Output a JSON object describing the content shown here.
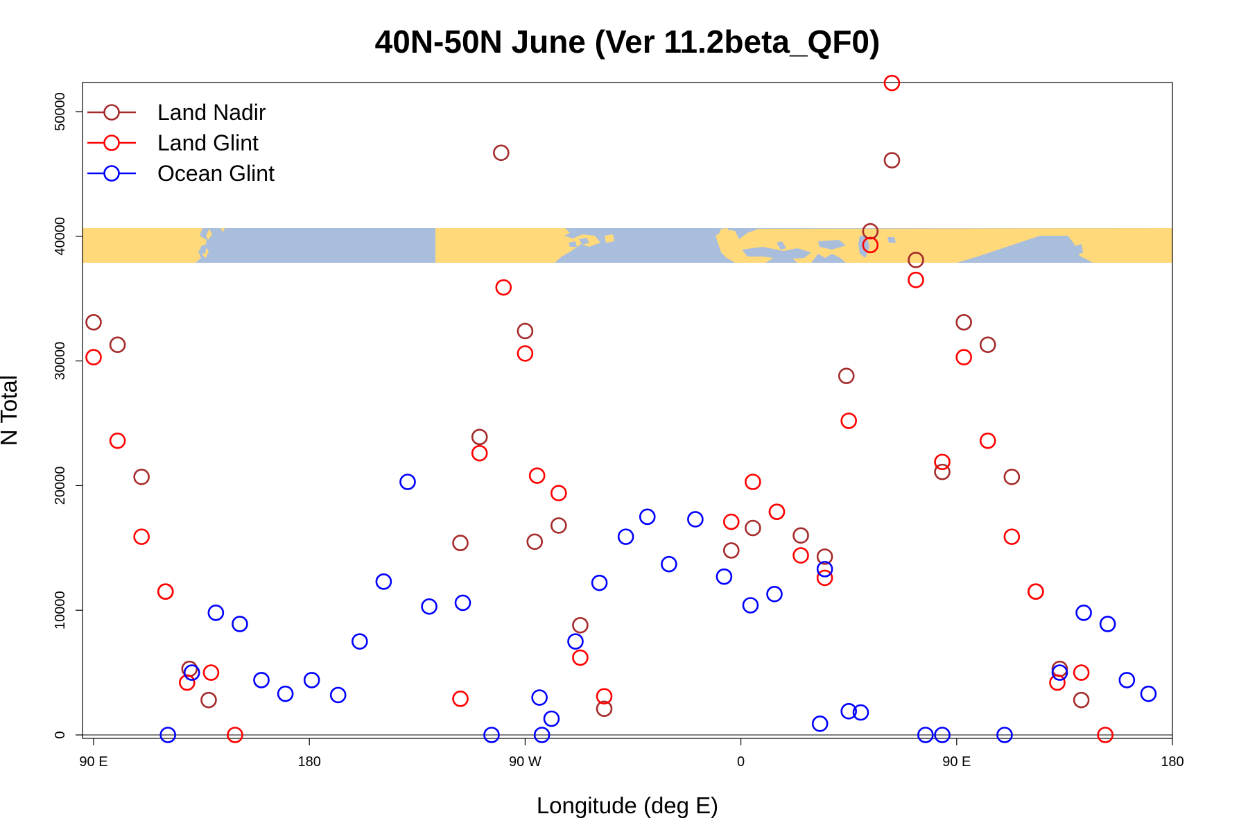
{
  "chart_data": {
    "type": "scatter",
    "title": "40N-50N June (Ver 11.2beta_QF0)",
    "xlabel": "Longitude (deg E)",
    "ylabel": "N Total",
    "xlim": [
      85,
      535
    ],
    "ylim": [
      0,
      52500
    ],
    "x_ticks": [
      {
        "value": 90,
        "label": "90 E"
      },
      {
        "value": 180,
        "label": "180"
      },
      {
        "value": 270,
        "label": "90 W"
      },
      {
        "value": 360,
        "label": "0"
      },
      {
        "value": 450,
        "label": "90 E"
      },
      {
        "value": 540,
        "label": "180"
      }
    ],
    "y_ticks": [
      0,
      10000,
      20000,
      30000,
      40000,
      50000
    ],
    "y_tick_labels": [
      "0",
      "10000",
      "20000",
      "30000",
      "40000",
      "50000"
    ],
    "legend_position": "top-left",
    "inset_map": {
      "description": "world map strip",
      "land_color": "#FFD97A",
      "ocean_color": "#A9BEDD",
      "y_range": [
        38000,
        40800
      ]
    },
    "series": [
      {
        "name": "Land Nadir",
        "color": "#A52A2A",
        "points": [
          [
            90,
            33100
          ],
          [
            100,
            31300
          ],
          [
            110,
            20700
          ],
          [
            120,
            11500
          ],
          [
            130,
            5300
          ],
          [
            138,
            2800
          ],
          [
            243,
            15400
          ],
          [
            251,
            23900
          ],
          [
            260,
            46700
          ],
          [
            270,
            32400
          ],
          [
            274,
            15500
          ],
          [
            284,
            16800
          ],
          [
            293,
            8800
          ],
          [
            303,
            2100
          ],
          [
            356,
            14800
          ],
          [
            365,
            16600
          ],
          [
            375,
            17900
          ],
          [
            385,
            16000
          ],
          [
            395,
            14300
          ],
          [
            404,
            28800
          ],
          [
            414,
            40400
          ],
          [
            423,
            46100
          ],
          [
            433,
            38100
          ],
          [
            444,
            21100
          ],
          [
            453,
            33100
          ],
          [
            463,
            31300
          ],
          [
            473,
            20700
          ],
          [
            483,
            11500
          ],
          [
            493,
            5300
          ],
          [
            502,
            2800
          ]
        ]
      },
      {
        "name": "Land Glint",
        "color": "#FF0000",
        "points": [
          [
            90,
            30300
          ],
          [
            100,
            23600
          ],
          [
            110,
            15900
          ],
          [
            120,
            11500
          ],
          [
            129,
            4200
          ],
          [
            139,
            5000
          ],
          [
            149,
            0
          ],
          [
            243,
            2900
          ],
          [
            251,
            22600
          ],
          [
            261,
            35900
          ],
          [
            270,
            30600
          ],
          [
            275,
            20800
          ],
          [
            284,
            19400
          ],
          [
            293,
            6200
          ],
          [
            303,
            3100
          ],
          [
            356,
            17100
          ],
          [
            365,
            20300
          ],
          [
            375,
            17900
          ],
          [
            385,
            14400
          ],
          [
            395,
            12600
          ],
          [
            405,
            25200
          ],
          [
            414,
            39300
          ],
          [
            423,
            52300
          ],
          [
            433,
            36500
          ],
          [
            444,
            21900
          ],
          [
            453,
            30300
          ],
          [
            463,
            23600
          ],
          [
            473,
            15900
          ],
          [
            483,
            11500
          ],
          [
            492,
            4200
          ],
          [
            502,
            5000
          ],
          [
            512,
            0
          ]
        ]
      },
      {
        "name": "Ocean Glint",
        "color": "#0000FF",
        "points": [
          [
            121,
            0
          ],
          [
            131,
            5000
          ],
          [
            141,
            9800
          ],
          [
            151,
            8900
          ],
          [
            160,
            4400
          ],
          [
            170,
            3300
          ],
          [
            181,
            4400
          ],
          [
            192,
            3200
          ],
          [
            201,
            7500
          ],
          [
            211,
            12300
          ],
          [
            221,
            20300
          ],
          [
            230,
            10300
          ],
          [
            244,
            10600
          ],
          [
            256,
            0
          ],
          [
            277,
            0
          ],
          [
            291,
            7500
          ],
          [
            281,
            1300
          ],
          [
            276,
            3000
          ],
          [
            301,
            12200
          ],
          [
            312,
            15900
          ],
          [
            321,
            17500
          ],
          [
            330,
            13700
          ],
          [
            341,
            17300
          ],
          [
            353,
            12700
          ],
          [
            364,
            10400
          ],
          [
            374,
            11300
          ],
          [
            393,
            900
          ],
          [
            405,
            1900
          ],
          [
            410,
            1800
          ],
          [
            395,
            13300
          ],
          [
            437,
            0
          ],
          [
            444,
            0
          ],
          [
            470,
            0
          ],
          [
            493,
            5000
          ],
          [
            503,
            9800
          ],
          [
            513,
            8900
          ],
          [
            521,
            4400
          ],
          [
            530,
            3300
          ]
        ]
      }
    ]
  }
}
